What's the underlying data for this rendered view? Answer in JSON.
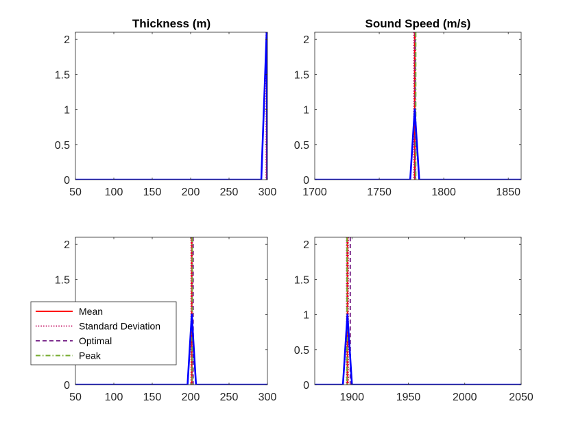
{
  "figure": {
    "background": "#ffffff"
  },
  "colors": {
    "mean": "#ff0000",
    "std": "#c0005a",
    "optimal": "#7e2f8e",
    "peak": "#77ac30",
    "dist": "#0000ff",
    "axis": "#262626"
  },
  "chart_data": [
    {
      "type": "line",
      "title": "Thickness (m)",
      "xlim": [
        50,
        300
      ],
      "ylim": [
        0,
        2.1
      ],
      "xticks": [
        50,
        100,
        150,
        200,
        250,
        300
      ],
      "yticks": [
        0,
        0.5,
        1,
        1.5,
        2
      ],
      "series": [
        {
          "role": "dist",
          "x": [
            50,
            292,
            299,
            300
          ],
          "y": [
            0,
            0,
            2.1,
            0
          ]
        }
      ],
      "vlines": [
        {
          "role": "mean",
          "x": 299
        },
        {
          "role": "std",
          "x": 298.3
        },
        {
          "role": "std",
          "x": 299.7
        },
        {
          "role": "optimal",
          "x": 299.3
        },
        {
          "role": "peak",
          "x": 299.6
        }
      ]
    },
    {
      "type": "line",
      "title": "Sound Speed (m/s)",
      "xlim": [
        1700,
        1860
      ],
      "ylim": [
        0,
        2.1
      ],
      "xticks": [
        1700,
        1750,
        1800,
        1850
      ],
      "yticks": [
        0,
        0.5,
        1,
        1.5,
        2
      ],
      "series": [
        {
          "role": "dist",
          "x": [
            1700,
            1774,
            1777.5,
            1781,
            1860
          ],
          "y": [
            0,
            0,
            1,
            0,
            0
          ]
        }
      ],
      "vlines": [
        {
          "role": "mean",
          "x": 1777.5
        },
        {
          "role": "std",
          "x": 1776.8
        },
        {
          "role": "std",
          "x": 1778.2
        },
        {
          "role": "optimal",
          "x": 1777.9
        },
        {
          "role": "peak",
          "x": 1778.3
        }
      ]
    },
    {
      "type": "line",
      "title": "",
      "xlim": [
        50,
        300
      ],
      "ylim": [
        0,
        2.1
      ],
      "xticks": [
        50,
        100,
        150,
        200,
        250,
        300
      ],
      "yticks": [
        0,
        0.5,
        1,
        1.5,
        2
      ],
      "series": [
        {
          "role": "dist",
          "x": [
            50,
            196,
            201.5,
            207,
            300
          ],
          "y": [
            0,
            0,
            1,
            0,
            0
          ]
        }
      ],
      "vlines": [
        {
          "role": "mean",
          "x": 201.5
        },
        {
          "role": "std",
          "x": 200.5
        },
        {
          "role": "std",
          "x": 202.5
        },
        {
          "role": "optimal",
          "x": 203.3
        },
        {
          "role": "peak",
          "x": 202
        }
      ]
    },
    {
      "type": "line",
      "title": "",
      "xlim": [
        1867,
        2050
      ],
      "ylim": [
        0,
        2.1
      ],
      "xticks": [
        1900,
        1950,
        2000,
        2050
      ],
      "yticks": [
        0,
        0.5,
        1,
        1.5,
        2
      ],
      "series": [
        {
          "role": "dist",
          "x": [
            1867,
            1892,
            1896,
            1900,
            2050
          ],
          "y": [
            0,
            0,
            1,
            0,
            0
          ]
        }
      ],
      "vlines": [
        {
          "role": "mean",
          "x": 1896
        },
        {
          "role": "std",
          "x": 1895.2
        },
        {
          "role": "std",
          "x": 1896.8
        },
        {
          "role": "optimal",
          "x": 1898.5
        },
        {
          "role": "peak",
          "x": 1895.6
        }
      ]
    }
  ],
  "legend": {
    "placement": "overlapping bottom-left panel, left side",
    "entries": [
      {
        "label": "Mean",
        "role": "mean",
        "dash": "solid"
      },
      {
        "label": "Standard Deviation",
        "role": "std",
        "dash": "dotted"
      },
      {
        "label": "Optimal",
        "role": "optimal",
        "dash": "dashed"
      },
      {
        "label": "Peak",
        "role": "peak",
        "dash": "dashdot"
      }
    ]
  }
}
